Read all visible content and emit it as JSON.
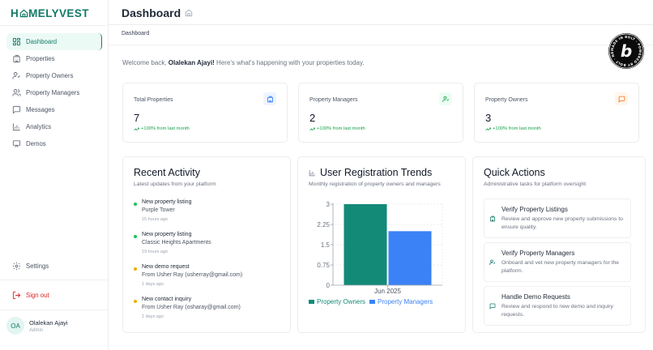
{
  "brand": {
    "logo_prefix": "H",
    "logo_suffix": "MELYVEST",
    "accent": "#127a68"
  },
  "sidebar": {
    "items": [
      {
        "label": "Dashboard",
        "icon": "grid-icon",
        "active": true
      },
      {
        "label": "Properties",
        "icon": "building-icon"
      },
      {
        "label": "Property Owners",
        "icon": "user-check-icon"
      },
      {
        "label": "Property Managers",
        "icon": "users-icon"
      },
      {
        "label": "Messages",
        "icon": "message-square-icon"
      },
      {
        "label": "Analytics",
        "icon": "bar-chart-icon"
      },
      {
        "label": "Demos",
        "icon": "presentation-icon"
      }
    ],
    "settings_label": "Settings",
    "signout_label": "Sign out",
    "user": {
      "initials": "OA",
      "name": "Olalekan Ajayi",
      "role": "Admin"
    }
  },
  "header": {
    "title": "Dashboard",
    "title_icon": "home-icon",
    "breadcrumb": "Dashboard"
  },
  "welcome": {
    "prefix": "Welcome back, ",
    "name": "Olalekan Ajayi!",
    "suffix": " Here's what's happening with your properties today."
  },
  "stats": [
    {
      "label": "Total Properties",
      "value": "7",
      "trend": "+100% from last month",
      "icon": "building-icon",
      "icon_color": "#3b82f6",
      "icon_bg": "#eef4ff"
    },
    {
      "label": "Property Managers",
      "value": "2",
      "trend": "+100% from last month",
      "icon": "user-check-icon",
      "icon_color": "#16a34a",
      "icon_bg": "#ecfdf3"
    },
    {
      "label": "Property Owners",
      "value": "3",
      "trend": "+100% from last month",
      "icon": "message-square-icon",
      "icon_color": "#f97316",
      "icon_bg": "#fff5ec"
    }
  ],
  "recent_activity": {
    "title": "Recent Activity",
    "subtitle": "Latest updates from your platform",
    "items": [
      {
        "title": "New property listing",
        "detail": "Purple Tower",
        "time": "15 hours ago",
        "dot": "#22c55e"
      },
      {
        "title": "New property listing",
        "detail": "Classic Heights Apartments",
        "time": "19 hours ago",
        "dot": "#22c55e"
      },
      {
        "title": "New demo request",
        "detail": "From Usher Ray (usherray@gmail.com)",
        "time": "1 days ago",
        "dot": "#eab308"
      },
      {
        "title": "New contact inquiry",
        "detail": "From Usher Ray (osharay@gmail.com)",
        "time": "1 days ago",
        "dot": "#eab308"
      }
    ]
  },
  "trends": {
    "title": "User Registration Trends",
    "subtitle": "Monthly registration of property owners and managers"
  },
  "chart_data": {
    "type": "bar",
    "title": "User Registration Trends",
    "subtitle": "Monthly registration of property owners and managers",
    "categories": [
      "Jun 2025"
    ],
    "series": [
      {
        "name": "Property Owners",
        "values": [
          3
        ],
        "color": "#138a78"
      },
      {
        "name": "Property Managers",
        "values": [
          2
        ],
        "color": "#3b82f6"
      }
    ],
    "xlabel": "",
    "ylabel": "",
    "ylim": [
      0,
      3
    ],
    "yticks": [
      "0",
      "0.75",
      "1.5",
      "2.25",
      "3"
    ],
    "grid": true,
    "legend_position": "bottom"
  },
  "quick_actions": {
    "title": "Quick Actions",
    "subtitle": "Administrative tasks for platform oversight",
    "items": [
      {
        "title": "Verify Property Listings",
        "desc": "Review and approve new property submissions to ensure quality.",
        "icon": "building-icon"
      },
      {
        "title": "Verify Property Managers",
        "desc": "Onboard and vet new property managers for the platform.",
        "icon": "user-check-icon"
      },
      {
        "title": "Handle Demo Requests",
        "desc": "Review and respond to new demo and inquiry requests.",
        "icon": "message-square-icon"
      }
    ]
  },
  "badge": {
    "letter": "b",
    "ring_text": "MADE IN BOLT · POWERED BY BOLT · NEW"
  }
}
